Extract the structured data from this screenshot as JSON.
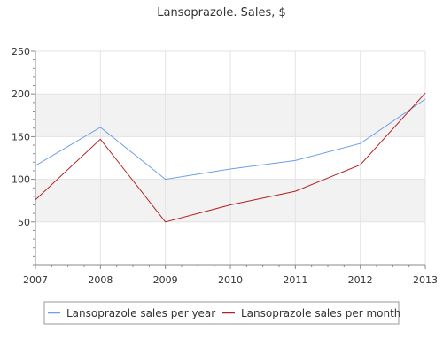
{
  "chart_data": {
    "type": "line",
    "title": "Lansoprazole. Sales, $",
    "xlabel": "",
    "ylabel": "",
    "x": [
      "2007",
      "2008",
      "2009",
      "2010",
      "2011",
      "2012",
      "2013"
    ],
    "ylim": [
      0,
      250
    ],
    "yticks": [
      50,
      100,
      150,
      200,
      250
    ],
    "grid": true,
    "legend_position": "bottom",
    "series": [
      {
        "name": "Lansoprazole sales per year",
        "color": "#6d9eeb",
        "values": [
          116,
          161,
          100,
          112,
          122,
          142,
          194
        ]
      },
      {
        "name": "Lansoprazole sales per month",
        "color": "#b22222",
        "values": [
          76,
          147,
          50,
          70,
          86,
          117,
          201
        ]
      }
    ]
  }
}
